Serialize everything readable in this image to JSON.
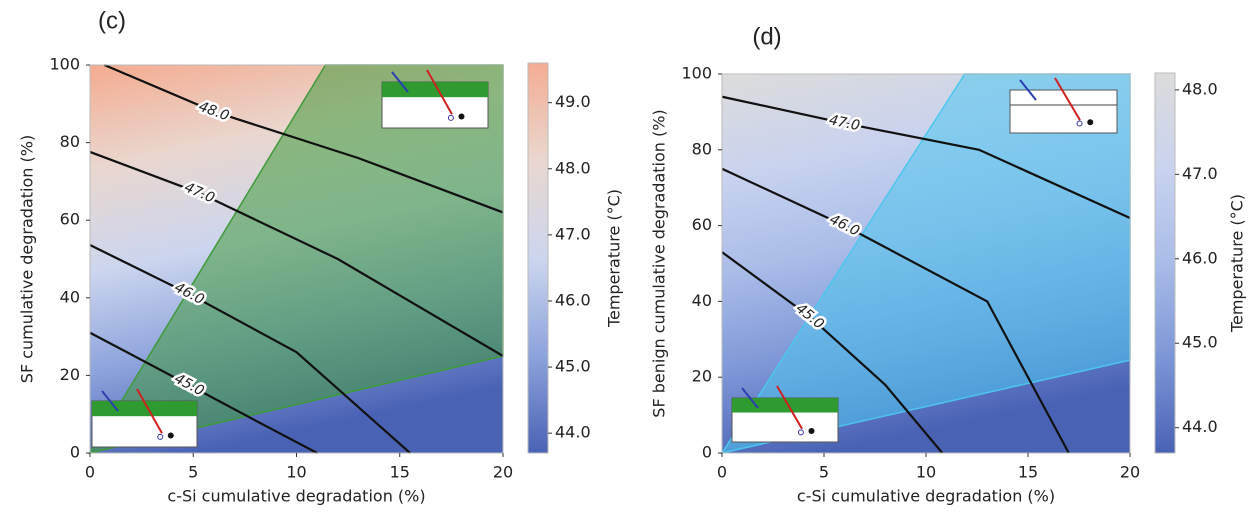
{
  "chart_data": [
    {
      "type": "contour",
      "panel_label": "(c)",
      "x_label": "c-Si cumulative degradation (%)",
      "y_label": "SF cumulative degradation (%)",
      "colorbar_label": "Temperature (°C)",
      "xlim": [
        0,
        20
      ],
      "ylim": [
        0,
        100
      ],
      "xticks": [
        0,
        5,
        10,
        15,
        20
      ],
      "yticks": [
        0,
        20,
        40,
        60,
        80,
        100
      ],
      "clim": [
        43.7,
        49.6
      ],
      "cticks": [
        {
          "value": 44,
          "label": "44.0"
        },
        {
          "value": 45,
          "label": "45.0"
        },
        {
          "value": 46,
          "label": "46.0"
        },
        {
          "value": 47,
          "label": "47.0"
        },
        {
          "value": 48,
          "label": "48.0"
        },
        {
          "value": 49,
          "label": "49.0"
        }
      ],
      "colormap": [
        "#4a62b4",
        "#8da3dc",
        "#ccd6ee",
        "#e9d7cf",
        "#f4ad92"
      ],
      "contour_color": "#111111",
      "contours": [
        {
          "level": 48,
          "label": "48.0",
          "x": [
            0.7,
            6,
            13,
            20
          ],
          "y": [
            100,
            88,
            76,
            62
          ]
        },
        {
          "level": 47,
          "label": "47.0",
          "x": [
            0,
            5.3,
            12,
            20
          ],
          "y": [
            77.6,
            67,
            50,
            25
          ]
        },
        {
          "level": 46,
          "label": "46.0",
          "x": [
            0,
            4.8,
            10,
            15.5
          ],
          "y": [
            53.6,
            41,
            26,
            0
          ]
        },
        {
          "level": 45,
          "label": "45.0",
          "x": [
            0,
            4.8,
            8.5,
            11
          ],
          "y": [
            31,
            17.5,
            7,
            0
          ]
        }
      ],
      "region": {
        "x": [
          0,
          11.4,
          20,
          20
        ],
        "y": [
          0,
          100,
          100,
          25
        ],
        "color": "#3f9a3a"
      }
    },
    {
      "type": "contour",
      "panel_label": "(d)",
      "x_label": "c-Si cumulative degradation (%)",
      "y_label": "SF benign cumulative degradation (%)",
      "colorbar_label": "Temperature (°C)",
      "xlim": [
        0,
        20
      ],
      "ylim": [
        0,
        100
      ],
      "xticks": [
        0,
        5,
        10,
        15,
        20
      ],
      "yticks": [
        0,
        20,
        40,
        60,
        80,
        100
      ],
      "clim": [
        43.7,
        48.2
      ],
      "cticks": [
        {
          "value": 44,
          "label": "44.0"
        },
        {
          "value": 45,
          "label": "45.0"
        },
        {
          "value": 46,
          "label": "46.0"
        },
        {
          "value": 47,
          "label": "47.0"
        },
        {
          "value": 48,
          "label": "48.0"
        }
      ],
      "colormap": [
        "#4a62b4",
        "#7d96d6",
        "#a9bce8",
        "#c9d3ee",
        "#dcdcdc"
      ],
      "contour_color": "#111111",
      "contours": [
        {
          "level": 47,
          "label": "47.0",
          "x": [
            0,
            6,
            12.6,
            20
          ],
          "y": [
            94,
            87,
            80,
            62
          ]
        },
        {
          "level": 46,
          "label": "46.0",
          "x": [
            0,
            6,
            13,
            17
          ],
          "y": [
            75,
            60,
            40,
            0
          ]
        },
        {
          "level": 45,
          "label": "45.0",
          "x": [
            0,
            4.3,
            8,
            10.8
          ],
          "y": [
            53,
            36,
            18,
            0
          ]
        }
      ],
      "region": {
        "x": [
          0,
          11.9,
          20,
          20
        ],
        "y": [
          0,
          100,
          100,
          24.5
        ],
        "color": "#4cc6ee"
      }
    }
  ]
}
